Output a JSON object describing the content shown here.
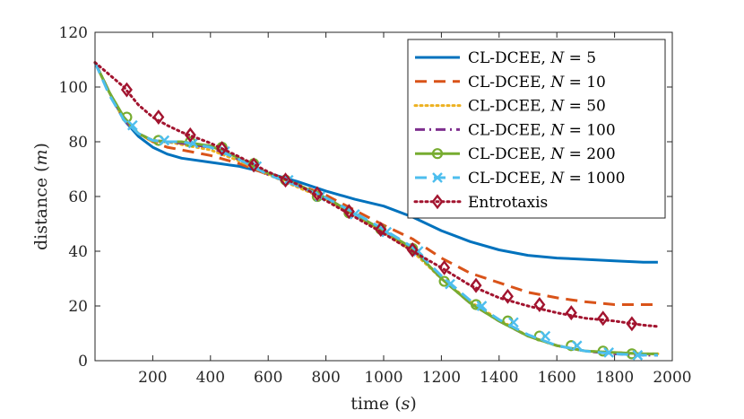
{
  "chart_data": {
    "type": "line",
    "title": "",
    "xlabel": "time (s)",
    "ylabel": "distance (m)",
    "xlabel_parts": {
      "text": "time (",
      "var": "s",
      "close": ")"
    },
    "ylabel_parts": {
      "text": "distance (",
      "var": "m",
      "close": ")"
    },
    "xlim": [
      0,
      2000
    ],
    "ylim": [
      0,
      120
    ],
    "xticks": [
      "200",
      "400",
      "600",
      "800",
      "1000",
      "1200",
      "1400",
      "1600",
      "1800",
      "2000"
    ],
    "xtick_values": [
      200,
      400,
      600,
      800,
      1000,
      1200,
      1400,
      1600,
      1800,
      2000
    ],
    "yticks": [
      "0",
      "20",
      "40",
      "60",
      "80",
      "100",
      "120"
    ],
    "ytick_values": [
      0,
      20,
      40,
      60,
      80,
      100,
      120
    ],
    "grid": false,
    "legend_position": "top-right",
    "series": [
      {
        "name": "CL-DCEE, N = 5",
        "label_prefix": "CL-DCEE, ",
        "label_var": "N",
        "label_value": " = 5",
        "color": "#0072BD",
        "dash": "solid",
        "marker": "none",
        "x": [
          0,
          50,
          100,
          150,
          200,
          250,
          300,
          400,
          500,
          600,
          700,
          800,
          900,
          1000,
          1100,
          1200,
          1300,
          1400,
          1500,
          1600,
          1700,
          1800,
          1900,
          1950
        ],
        "y": [
          109,
          98,
          88,
          82,
          78,
          75.5,
          74,
          72.5,
          71,
          68.5,
          65.5,
          62,
          59,
          56.5,
          52.5,
          47.5,
          43.5,
          40.5,
          38.5,
          37.5,
          37,
          36.5,
          36,
          36
        ]
      },
      {
        "name": "CL-DCEE, N = 10",
        "label_prefix": "CL-DCEE, ",
        "label_var": "N",
        "label_value": " = 10",
        "color": "#D95319",
        "dash": "dashed",
        "marker": "none",
        "x": [
          0,
          50,
          100,
          150,
          200,
          250,
          300,
          400,
          500,
          600,
          700,
          800,
          900,
          1000,
          1100,
          1200,
          1300,
          1400,
          1500,
          1600,
          1700,
          1800,
          1900,
          1950
        ],
        "y": [
          109,
          98,
          88,
          83,
          80,
          78,
          77,
          75,
          72,
          68,
          64.5,
          60.5,
          55,
          49.5,
          44.5,
          37.5,
          32,
          28.5,
          25,
          23,
          21.5,
          20.5,
          20.5,
          20.5
        ]
      },
      {
        "name": "CL-DCEE, N = 50",
        "label_prefix": "CL-DCEE, ",
        "label_var": "N",
        "label_value": " = 50",
        "color": "#EDB120",
        "dash": "dotted",
        "marker": "none",
        "x": [
          0,
          50,
          100,
          150,
          200,
          250,
          300,
          400,
          500,
          600,
          700,
          800,
          900,
          1000,
          1100,
          1200,
          1300,
          1400,
          1500,
          1600,
          1700,
          1800,
          1900,
          1950
        ],
        "y": [
          109,
          98,
          88,
          83,
          80,
          80,
          79,
          77,
          73,
          68,
          63.5,
          59,
          53,
          47,
          40,
          30,
          21.5,
          15,
          9,
          5.5,
          3.5,
          3,
          2.5,
          2.5
        ]
      },
      {
        "name": "CL-DCEE, N = 100",
        "label_prefix": "CL-DCEE, ",
        "label_var": "N",
        "label_value": " = 100",
        "color": "#7E2F8E",
        "dash": "dashdot",
        "marker": "none",
        "x": [
          0,
          50,
          100,
          150,
          200,
          250,
          300,
          400,
          500,
          600,
          700,
          800,
          900,
          1000,
          1100,
          1200,
          1300,
          1400,
          1500,
          1600,
          1700,
          1800,
          1900,
          1950
        ],
        "y": [
          109,
          98,
          88,
          83,
          80.5,
          80,
          79.5,
          78,
          73.5,
          68,
          64,
          59.5,
          53.5,
          47.5,
          41,
          30,
          21,
          14.5,
          9,
          5.5,
          3.5,
          2.5,
          2,
          2
        ]
      },
      {
        "name": "CL-DCEE, N = 200",
        "label_prefix": "CL-DCEE, ",
        "label_var": "N",
        "label_value": " = 200",
        "color": "#77AC30",
        "dash": "solid",
        "marker": "circle",
        "x": [
          0,
          50,
          100,
          150,
          200,
          250,
          300,
          400,
          500,
          600,
          700,
          800,
          900,
          1000,
          1100,
          1200,
          1300,
          1400,
          1500,
          1600,
          1700,
          1800,
          1900,
          1950
        ],
        "y": [
          109,
          98,
          89,
          83,
          80.5,
          80,
          80,
          78.5,
          74,
          68.5,
          64.5,
          59.5,
          53.5,
          47.5,
          41,
          30,
          21,
          14.5,
          9,
          5.5,
          3.5,
          3,
          2.5,
          2.5
        ],
        "marker_x": [
          110,
          220,
          330,
          440,
          550,
          660,
          770,
          880,
          990,
          1100,
          1210,
          1320,
          1430,
          1540,
          1650,
          1760,
          1860
        ],
        "marker_y": [
          89,
          80.5,
          80,
          78,
          72,
          66,
          60,
          54,
          48,
          41,
          29,
          20.5,
          14.5,
          9,
          5.5,
          3.5,
          2.5
        ]
      },
      {
        "name": "CL-DCEE, N = 1000",
        "label_prefix": "CL-DCEE, ",
        "label_var": "N",
        "label_value": " = 1000",
        "color": "#4DBEEE",
        "dash": "dashed",
        "marker": "cross",
        "x": [
          0,
          50,
          100,
          150,
          200,
          250,
          300,
          400,
          500,
          600,
          700,
          800,
          900,
          1000,
          1100,
          1200,
          1300,
          1400,
          1500,
          1600,
          1700,
          1800,
          1900,
          1950
        ],
        "y": [
          109,
          97,
          88,
          83,
          80.5,
          80,
          80,
          78,
          73.5,
          68,
          64,
          59.5,
          54,
          48,
          41.5,
          31,
          22,
          15,
          9.5,
          5.5,
          3.5,
          2.5,
          2,
          2
        ],
        "marker_x": [
          130,
          240,
          340,
          450,
          560,
          670,
          780,
          900,
          1010,
          1120,
          1230,
          1340,
          1450,
          1560,
          1670,
          1780,
          1880
        ],
        "marker_y": [
          86,
          80.5,
          79.5,
          76.5,
          71,
          66,
          60,
          53.5,
          47,
          40,
          28,
          20,
          14,
          9,
          5.5,
          3,
          2
        ]
      },
      {
        "name": "Entrotaxis",
        "label_prefix": "Entrotaxis",
        "label_var": "",
        "label_value": "",
        "color": "#A2142F",
        "dash": "dotted",
        "marker": "diamond",
        "x": [
          0,
          50,
          100,
          150,
          200,
          250,
          300,
          400,
          500,
          600,
          700,
          800,
          900,
          1000,
          1100,
          1200,
          1300,
          1400,
          1500,
          1600,
          1700,
          1800,
          1900,
          1950
        ],
        "y": [
          109,
          104.5,
          100,
          93.5,
          89,
          86,
          83.5,
          79.5,
          74.5,
          69,
          64.5,
          58.5,
          52.5,
          46.5,
          40,
          34,
          27.5,
          23,
          20,
          17.5,
          15.5,
          14.5,
          13,
          12.5
        ],
        "marker_x": [
          110,
          220,
          330,
          440,
          550,
          660,
          770,
          880,
          990,
          1100,
          1210,
          1320,
          1430,
          1540,
          1650,
          1760,
          1860
        ],
        "marker_y": [
          99,
          89,
          82.5,
          77.5,
          71.5,
          66,
          61,
          54.5,
          48,
          40.5,
          34,
          27.5,
          23.5,
          20.5,
          17.5,
          15.5,
          13.5
        ]
      }
    ]
  }
}
